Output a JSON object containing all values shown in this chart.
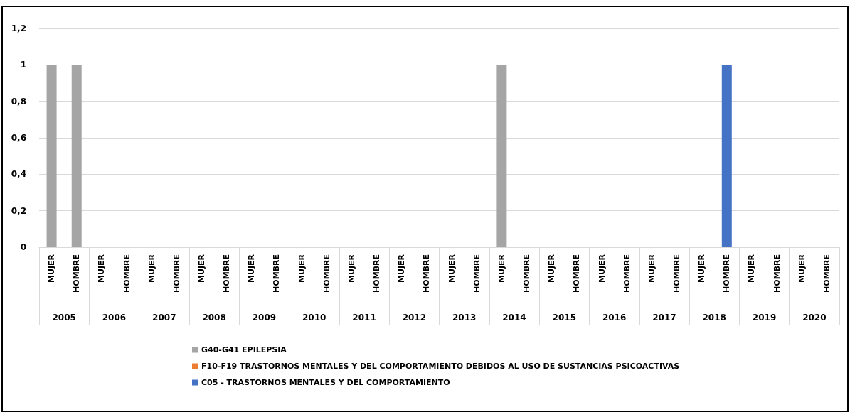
{
  "chart_data": {
    "type": "bar",
    "categories": [
      "MUJER",
      "HOMBRE",
      "MUJER",
      "HOMBRE",
      "MUJER",
      "HOMBRE",
      "MUJER",
      "HOMBRE",
      "MUJER",
      "HOMBRE",
      "MUJER",
      "HOMBRE",
      "MUJER",
      "HOMBRE",
      "MUJER",
      "HOMBRE",
      "MUJER",
      "HOMBRE",
      "MUJER",
      "HOMBRE",
      "MUJER",
      "HOMBRE",
      "MUJER",
      "HOMBRE",
      "MUJER",
      "HOMBRE",
      "MUJER",
      "HOMBRE",
      "MUJER",
      "HOMBRE",
      "MUJER",
      "HOMBRE"
    ],
    "annotations": [
      "2005",
      "2006",
      "2007",
      "2008",
      "2009",
      "2010",
      "2011",
      "2012",
      "2013",
      "2014",
      "2015",
      "2016",
      "2017",
      "2018",
      "2019",
      "2020"
    ],
    "series": [
      {
        "name": "G40-G41 EPILEPSIA",
        "color": "#a5a5a5",
        "values": [
          1,
          1,
          0,
          0,
          0,
          0,
          0,
          0,
          0,
          0,
          0,
          0,
          0,
          0,
          0,
          0,
          0,
          0,
          1,
          0,
          0,
          0,
          0,
          0,
          0,
          0,
          0,
          0,
          0,
          0,
          0,
          0
        ]
      },
      {
        "name": "F10-F19 TRASTORNOS MENTALES Y DEL COMPORTAMIENTO DEBIDOS AL USO DE SUSTANCIAS PSICOACTIVAS",
        "color": "#ed7d31",
        "values": [
          0,
          0,
          0,
          0,
          0,
          0,
          0,
          0,
          0,
          0,
          0,
          0,
          0,
          0,
          0,
          0,
          0,
          0,
          0,
          0,
          0,
          0,
          0,
          0,
          0,
          0,
          0,
          0,
          0,
          0,
          0,
          0
        ]
      },
      {
        "name": "C05 - TRASTORNOS MENTALES Y DEL COMPORTAMIENTO",
        "color": "#4472c4",
        "values": [
          0,
          0,
          0,
          0,
          0,
          0,
          0,
          0,
          0,
          0,
          0,
          0,
          0,
          0,
          0,
          0,
          0,
          0,
          0,
          0,
          0,
          0,
          0,
          0,
          0,
          0,
          0,
          1,
          0,
          0,
          0,
          0
        ]
      }
    ],
    "ylim": [
      0,
      1.2
    ],
    "yticks": [
      0,
      {
        "value": 0.2,
        "label": "0,2"
      },
      {
        "value": 0.4,
        "label": "0,4"
      },
      {
        "value": 0.6,
        "label": "0,6"
      },
      {
        "value": 0.8,
        "label": "0,8"
      },
      1,
      {
        "value": 1.2,
        "label": "1,2"
      }
    ],
    "grid": "y",
    "legend": "bottom"
  }
}
